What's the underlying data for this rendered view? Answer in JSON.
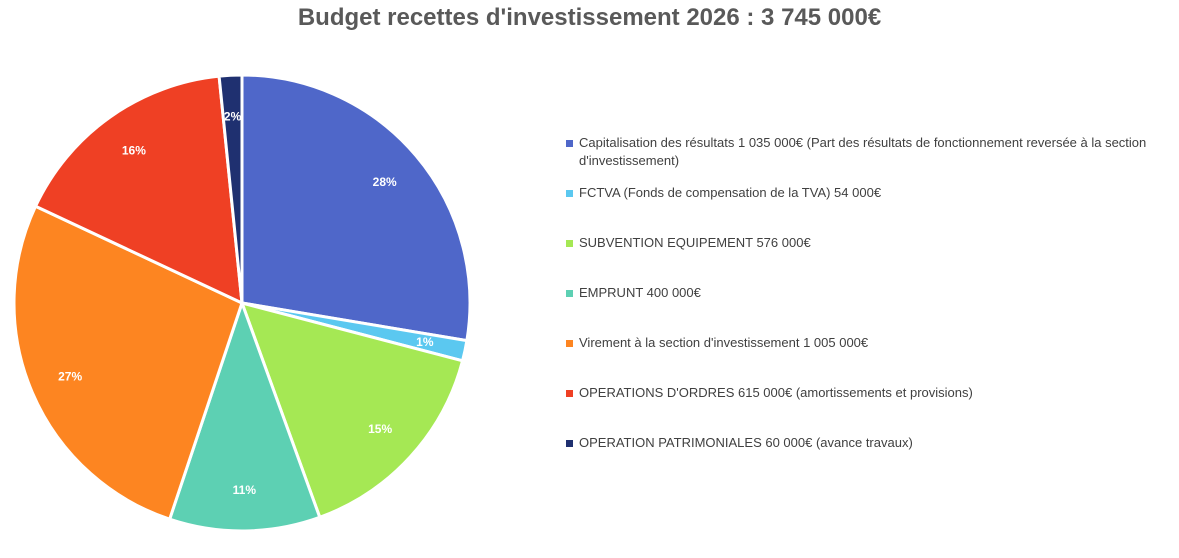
{
  "chart_data": {
    "type": "pie",
    "title": "Budget recettes d'investissement 2026 : 3 745 000€",
    "legend_position": "right",
    "slices": [
      {
        "label": "Capitalisation des résultats 1 035 000€ (Part des résultats de fonctionnement reversée à la section d'investissement)",
        "value": 1035000,
        "percent_label": "28%",
        "color": "#4f67c9"
      },
      {
        "label": "FCTVA (Fonds de compensation de la TVA)  54 000€",
        "value": 54000,
        "percent_label": "1%",
        "color": "#5bc8f0"
      },
      {
        "label": "SUBVENTION EQUIPEMENT 576 000€",
        "value": 576000,
        "percent_label": "15%",
        "color": "#a5e854"
      },
      {
        "label": "EMPRUNT 400 000€",
        "value": 400000,
        "percent_label": "11%",
        "color": "#5dd0b3"
      },
      {
        "label": "Virement à la section d'investissement 1 005 000€",
        "value": 1005000,
        "percent_label": "27%",
        "color": "#fd8521"
      },
      {
        "label": "OPERATIONS D'ORDRES 615 000€ (amortissements et provisions)",
        "value": 615000,
        "percent_label": "16%",
        "color": "#ef4024"
      },
      {
        "label": "OPERATION PATRIMONIALES 60 000€ (avance travaux)",
        "value": 60000,
        "percent_label": "2%",
        "color": "#1f3070"
      }
    ]
  }
}
